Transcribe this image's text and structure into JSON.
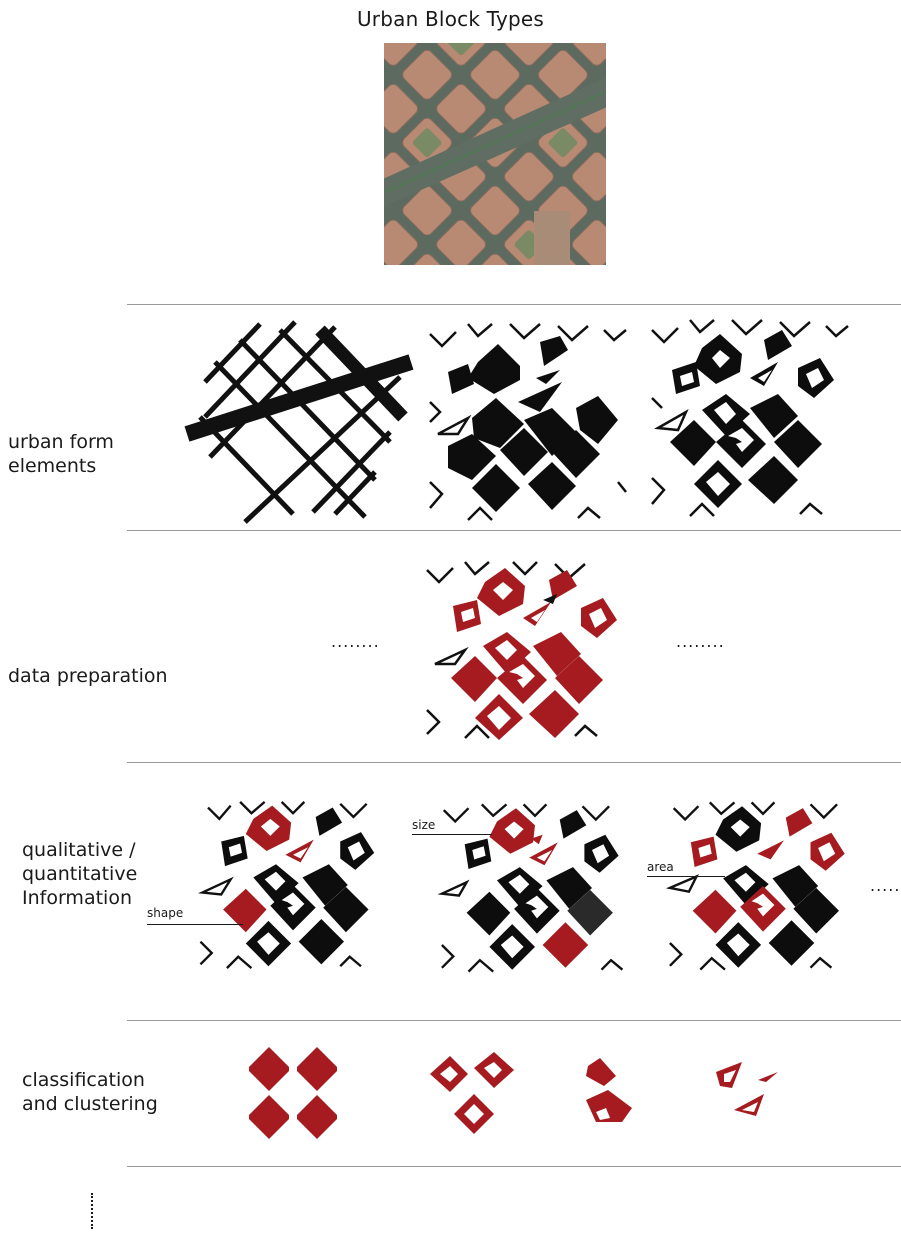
{
  "title": "Urban Block Types",
  "colors": {
    "block_red": "#a51b1f",
    "block_black": "#0d0d0d",
    "rule_gray": "#9a9a9a",
    "street_black": "#111111"
  },
  "rows": [
    {
      "label_lines": [
        "urban form",
        "elements"
      ]
    },
    {
      "label_lines": [
        "data preparation"
      ],
      "left_ellipsis": "........",
      "right_ellipsis": "........"
    },
    {
      "label_lines": [
        "qualitative /",
        "quantitative",
        "Information"
      ],
      "callouts": {
        "shape": "shape",
        "size": "size",
        "area": "area"
      },
      "right_ellipsis": "......"
    },
    {
      "label_lines": [
        "classification",
        "and clustering"
      ]
    }
  ]
}
